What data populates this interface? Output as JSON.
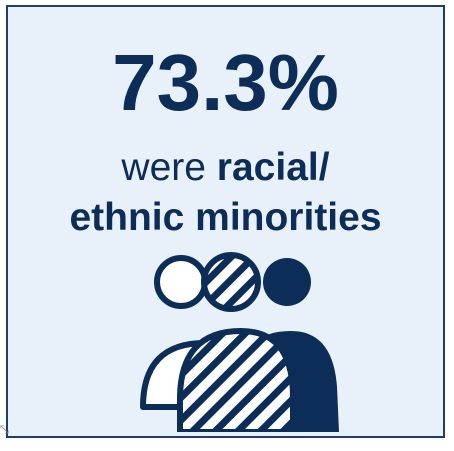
{
  "stat": {
    "value": "73.3%"
  },
  "caption": {
    "line1_regular": "were ",
    "line1_bold": "racial/",
    "line2_bold": "ethnic minorities"
  },
  "icon": {
    "name": "diverse-people-group-icon"
  },
  "colors": {
    "navy": "#0c2d57",
    "background": "#e8f0f9",
    "border": "#1f3d68"
  }
}
